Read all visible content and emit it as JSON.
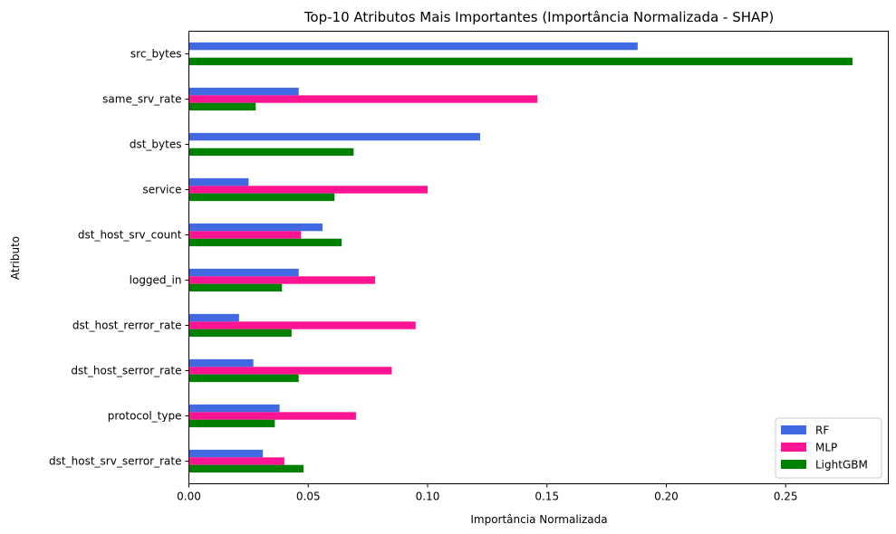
{
  "chart_data": {
    "type": "bar",
    "orientation": "horizontal",
    "title": "Top-10 Atributos Mais Importantes (Importância Normalizada - SHAP)",
    "xlabel": "Importância Normalizada",
    "ylabel": "Atributo",
    "categories": [
      "src_bytes",
      "same_srv_rate",
      "dst_bytes",
      "service",
      "dst_host_srv_count",
      "logged_in",
      "dst_host_rerror_rate",
      "dst_host_serror_rate",
      "protocol_type",
      "dst_host_srv_serror_rate"
    ],
    "series": [
      {
        "name": "RF",
        "color": "#4169e1",
        "values": [
          0.188,
          0.046,
          0.122,
          0.025,
          0.056,
          0.046,
          0.021,
          0.027,
          0.038,
          0.031
        ]
      },
      {
        "name": "MLP",
        "color": "#ff1493",
        "values": [
          0.0,
          0.146,
          0.0,
          0.1,
          0.047,
          0.078,
          0.095,
          0.085,
          0.07,
          0.04
        ]
      },
      {
        "name": "LightGBM",
        "color": "#008000",
        "values": [
          0.278,
          0.028,
          0.069,
          0.061,
          0.064,
          0.039,
          0.043,
          0.046,
          0.036,
          0.048
        ]
      }
    ],
    "xlim": [
      0,
      0.293
    ],
    "xticks": [
      {
        "value": 0,
        "label": "0.00"
      },
      {
        "value": 0.05,
        "label": "0.05"
      },
      {
        "value": 0.1,
        "label": "0.10"
      },
      {
        "value": 0.15,
        "label": "0.15"
      },
      {
        "value": 0.2,
        "label": "0.20"
      },
      {
        "value": 0.25,
        "label": "0.25"
      }
    ],
    "grid": false,
    "legend_position": "bottom-right"
  }
}
